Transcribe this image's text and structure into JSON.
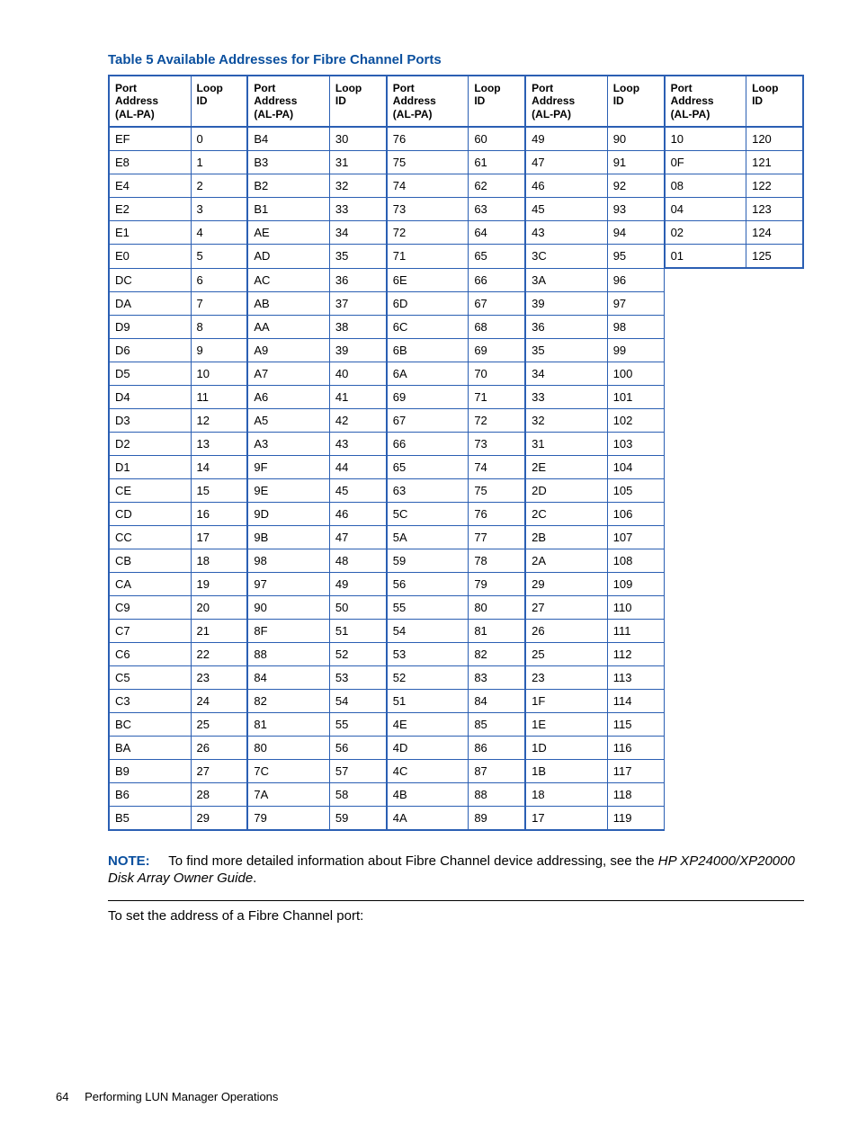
{
  "colors": {
    "hp_blue": "#0a4f9e",
    "table_border": "#2b5fb3",
    "text": "#000000",
    "background": "#ffffff"
  },
  "table": {
    "title": "Table 5 Available Addresses for Fibre Channel Ports",
    "header_pair": {
      "addr": "Port Address (AL-PA)",
      "loop": "Loop ID"
    },
    "column_pairs_count": 5,
    "rows_per_column": 30,
    "last_pair_rows": 6,
    "data": [
      [
        "EF",
        "0"
      ],
      [
        "E8",
        "1"
      ],
      [
        "E4",
        "2"
      ],
      [
        "E2",
        "3"
      ],
      [
        "E1",
        "4"
      ],
      [
        "E0",
        "5"
      ],
      [
        "DC",
        "6"
      ],
      [
        "DA",
        "7"
      ],
      [
        "D9",
        "8"
      ],
      [
        "D6",
        "9"
      ],
      [
        "D5",
        "10"
      ],
      [
        "D4",
        "11"
      ],
      [
        "D3",
        "12"
      ],
      [
        "D2",
        "13"
      ],
      [
        "D1",
        "14"
      ],
      [
        "CE",
        "15"
      ],
      [
        "CD",
        "16"
      ],
      [
        "CC",
        "17"
      ],
      [
        "CB",
        "18"
      ],
      [
        "CA",
        "19"
      ],
      [
        "C9",
        "20"
      ],
      [
        "C7",
        "21"
      ],
      [
        "C6",
        "22"
      ],
      [
        "C5",
        "23"
      ],
      [
        "C3",
        "24"
      ],
      [
        "BC",
        "25"
      ],
      [
        "BA",
        "26"
      ],
      [
        "B9",
        "27"
      ],
      [
        "B6",
        "28"
      ],
      [
        "B5",
        "29"
      ],
      [
        "B4",
        "30"
      ],
      [
        "B3",
        "31"
      ],
      [
        "B2",
        "32"
      ],
      [
        "B1",
        "33"
      ],
      [
        "AE",
        "34"
      ],
      [
        "AD",
        "35"
      ],
      [
        "AC",
        "36"
      ],
      [
        "AB",
        "37"
      ],
      [
        "AA",
        "38"
      ],
      [
        "A9",
        "39"
      ],
      [
        "A7",
        "40"
      ],
      [
        "A6",
        "41"
      ],
      [
        "A5",
        "42"
      ],
      [
        "A3",
        "43"
      ],
      [
        "9F",
        "44"
      ],
      [
        "9E",
        "45"
      ],
      [
        "9D",
        "46"
      ],
      [
        "9B",
        "47"
      ],
      [
        "98",
        "48"
      ],
      [
        "97",
        "49"
      ],
      [
        "90",
        "50"
      ],
      [
        "8F",
        "51"
      ],
      [
        "88",
        "52"
      ],
      [
        "84",
        "53"
      ],
      [
        "82",
        "54"
      ],
      [
        "81",
        "55"
      ],
      [
        "80",
        "56"
      ],
      [
        "7C",
        "57"
      ],
      [
        "7A",
        "58"
      ],
      [
        "79",
        "59"
      ],
      [
        "76",
        "60"
      ],
      [
        "75",
        "61"
      ],
      [
        "74",
        "62"
      ],
      [
        "73",
        "63"
      ],
      [
        "72",
        "64"
      ],
      [
        "71",
        "65"
      ],
      [
        "6E",
        "66"
      ],
      [
        "6D",
        "67"
      ],
      [
        "6C",
        "68"
      ],
      [
        "6B",
        "69"
      ],
      [
        "6A",
        "70"
      ],
      [
        "69",
        "71"
      ],
      [
        "67",
        "72"
      ],
      [
        "66",
        "73"
      ],
      [
        "65",
        "74"
      ],
      [
        "63",
        "75"
      ],
      [
        "5C",
        "76"
      ],
      [
        "5A",
        "77"
      ],
      [
        "59",
        "78"
      ],
      [
        "56",
        "79"
      ],
      [
        "55",
        "80"
      ],
      [
        "54",
        "81"
      ],
      [
        "53",
        "82"
      ],
      [
        "52",
        "83"
      ],
      [
        "51",
        "84"
      ],
      [
        "4E",
        "85"
      ],
      [
        "4D",
        "86"
      ],
      [
        "4C",
        "87"
      ],
      [
        "4B",
        "88"
      ],
      [
        "4A",
        "89"
      ],
      [
        "49",
        "90"
      ],
      [
        "47",
        "91"
      ],
      [
        "46",
        "92"
      ],
      [
        "45",
        "93"
      ],
      [
        "43",
        "94"
      ],
      [
        "3C",
        "95"
      ],
      [
        "3A",
        "96"
      ],
      [
        "39",
        "97"
      ],
      [
        "36",
        "98"
      ],
      [
        "35",
        "99"
      ],
      [
        "34",
        "100"
      ],
      [
        "33",
        "101"
      ],
      [
        "32",
        "102"
      ],
      [
        "31",
        "103"
      ],
      [
        "2E",
        "104"
      ],
      [
        "2D",
        "105"
      ],
      [
        "2C",
        "106"
      ],
      [
        "2B",
        "107"
      ],
      [
        "2A",
        "108"
      ],
      [
        "29",
        "109"
      ],
      [
        "27",
        "110"
      ],
      [
        "26",
        "111"
      ],
      [
        "25",
        "112"
      ],
      [
        "23",
        "113"
      ],
      [
        "1F",
        "114"
      ],
      [
        "1E",
        "115"
      ],
      [
        "1D",
        "116"
      ],
      [
        "1B",
        "117"
      ],
      [
        "18",
        "118"
      ],
      [
        "17",
        "119"
      ],
      [
        "10",
        "120"
      ],
      [
        "0F",
        "121"
      ],
      [
        "08",
        "122"
      ],
      [
        "04",
        "123"
      ],
      [
        "02",
        "124"
      ],
      [
        "01",
        "125"
      ]
    ]
  },
  "note": {
    "label": "NOTE:",
    "text_part1": "To find more detailed information about Fibre Channel device addressing, see the ",
    "text_italic": "HP XP24000/XP20000 Disk Array Owner Guide",
    "text_part2": "."
  },
  "body_text": "To set the address of a Fibre Channel port:",
  "footer": {
    "page_number": "64",
    "section": "Performing LUN Manager Operations"
  }
}
